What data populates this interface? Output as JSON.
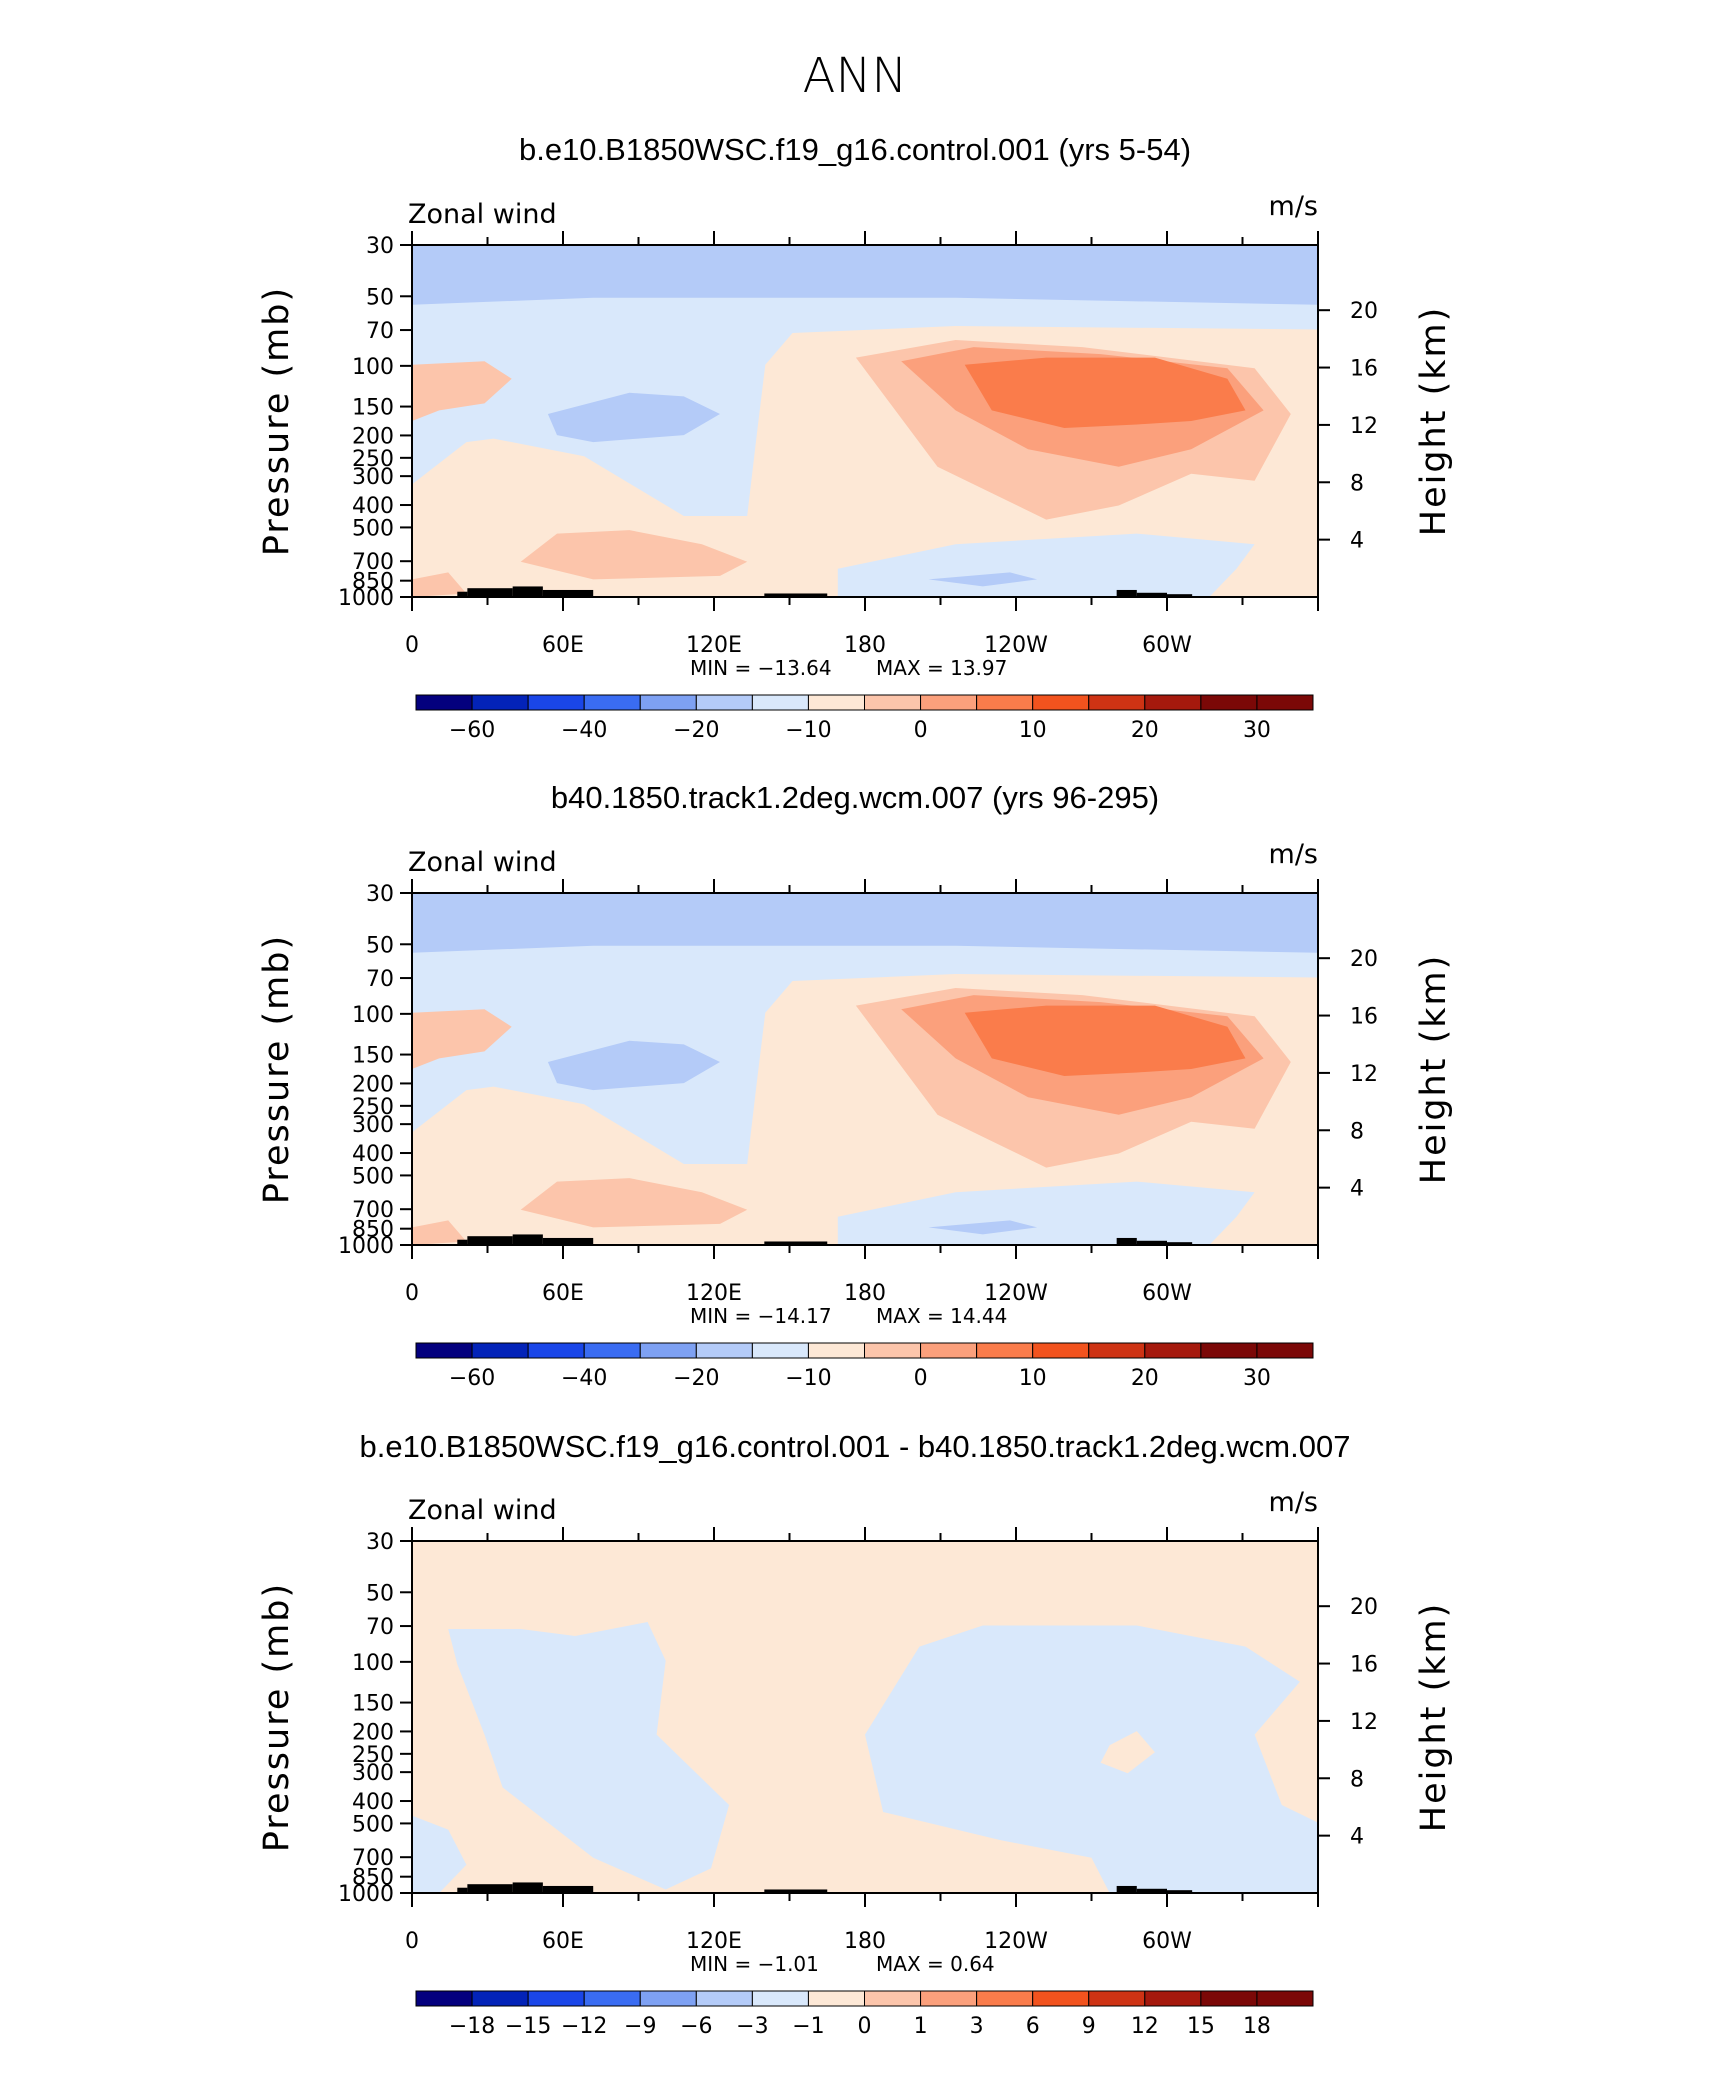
{
  "figure": {
    "title": "ANN"
  },
  "chart_data": [
    {
      "type": "contour",
      "title": "b.e10.B1850WSC.f19_g16.control.001 (yrs 5-54)",
      "left_label": "Zonal wind",
      "right_label": "m/s",
      "ylabel": "Pressure (mb)",
      "ylabel_right": "Height (km)",
      "x_ticks": [
        "0",
        "60E",
        "120E",
        "180",
        "120W",
        "60W"
      ],
      "y_ticks": [
        "30",
        "50",
        "70",
        "100",
        "150",
        "200",
        "250",
        "300",
        "400",
        "500",
        "700",
        "850",
        "1000"
      ],
      "y_ticks_right": [
        "20",
        "16",
        "12",
        "8",
        "4"
      ],
      "min_text": "MIN = −13.64",
      "max_text": "MAX = 13.97",
      "min": -13.64,
      "max": 13.97,
      "colorbar_labels": [
        "−60",
        "−40",
        "−20",
        "−10",
        "0",
        "10",
        "20",
        "30"
      ],
      "colorbar_colors": [
        "#04007e",
        "#0323b8",
        "#1a46e8",
        "#3a6cf2",
        "#7ea1f3",
        "#b4cbf8",
        "#d9e8fb",
        "#fde8d6",
        "#fcc5ab",
        "#fba07c",
        "#fa7c4b",
        "#f2531e",
        "#ce3314",
        "#a5190d",
        "#7b0807"
      ],
      "variant": "mean1"
    },
    {
      "type": "contour",
      "title": "b40.1850.track1.2deg.wcm.007 (yrs 96-295)",
      "left_label": "Zonal wind",
      "right_label": "m/s",
      "ylabel": "Pressure (mb)",
      "ylabel_right": "Height (km)",
      "x_ticks": [
        "0",
        "60E",
        "120E",
        "180",
        "120W",
        "60W"
      ],
      "y_ticks": [
        "30",
        "50",
        "70",
        "100",
        "150",
        "200",
        "250",
        "300",
        "400",
        "500",
        "700",
        "850",
        "1000"
      ],
      "y_ticks_right": [
        "20",
        "16",
        "12",
        "8",
        "4"
      ],
      "min_text": "MIN = −14.17",
      "max_text": "MAX = 14.44",
      "min": -14.17,
      "max": 14.44,
      "colorbar_labels": [
        "−60",
        "−40",
        "−20",
        "−10",
        "0",
        "10",
        "20",
        "30"
      ],
      "colorbar_colors": [
        "#04007e",
        "#0323b8",
        "#1a46e8",
        "#3a6cf2",
        "#7ea1f3",
        "#b4cbf8",
        "#d9e8fb",
        "#fde8d6",
        "#fcc5ab",
        "#fba07c",
        "#fa7c4b",
        "#f2531e",
        "#ce3314",
        "#a5190d",
        "#7b0807"
      ],
      "variant": "mean2"
    },
    {
      "type": "contour",
      "title": "b.e10.B1850WSC.f19_g16.control.001 - b40.1850.track1.2deg.wcm.007",
      "left_label": "Zonal wind",
      "right_label": "m/s",
      "ylabel": "Pressure (mb)",
      "ylabel_right": "Height (km)",
      "x_ticks": [
        "0",
        "60E",
        "120E",
        "180",
        "120W",
        "60W"
      ],
      "y_ticks": [
        "30",
        "50",
        "70",
        "100",
        "150",
        "200",
        "250",
        "300",
        "400",
        "500",
        "700",
        "850",
        "1000"
      ],
      "y_ticks_right": [
        "20",
        "16",
        "12",
        "8",
        "4"
      ],
      "min_text": "MIN = −1.01",
      "max_text": "MAX = 0.64",
      "min": -1.01,
      "max": 0.64,
      "colorbar_labels": [
        "−18",
        "−15",
        "−12",
        "−9",
        "−6",
        "−3",
        "−1",
        "0",
        "1",
        "3",
        "6",
        "9",
        "12",
        "15",
        "18"
      ],
      "colorbar_colors": [
        "#04007e",
        "#0323b8",
        "#1a46e8",
        "#3a6cf2",
        "#7ea1f3",
        "#b4cbf8",
        "#d9e8fb",
        "#fde8d6",
        "#fcc5ab",
        "#fba07c",
        "#fa7c4b",
        "#f2531e",
        "#ce3314",
        "#a5190d",
        "#7b0807",
        "#7b0807"
      ],
      "variant": "diff"
    }
  ]
}
